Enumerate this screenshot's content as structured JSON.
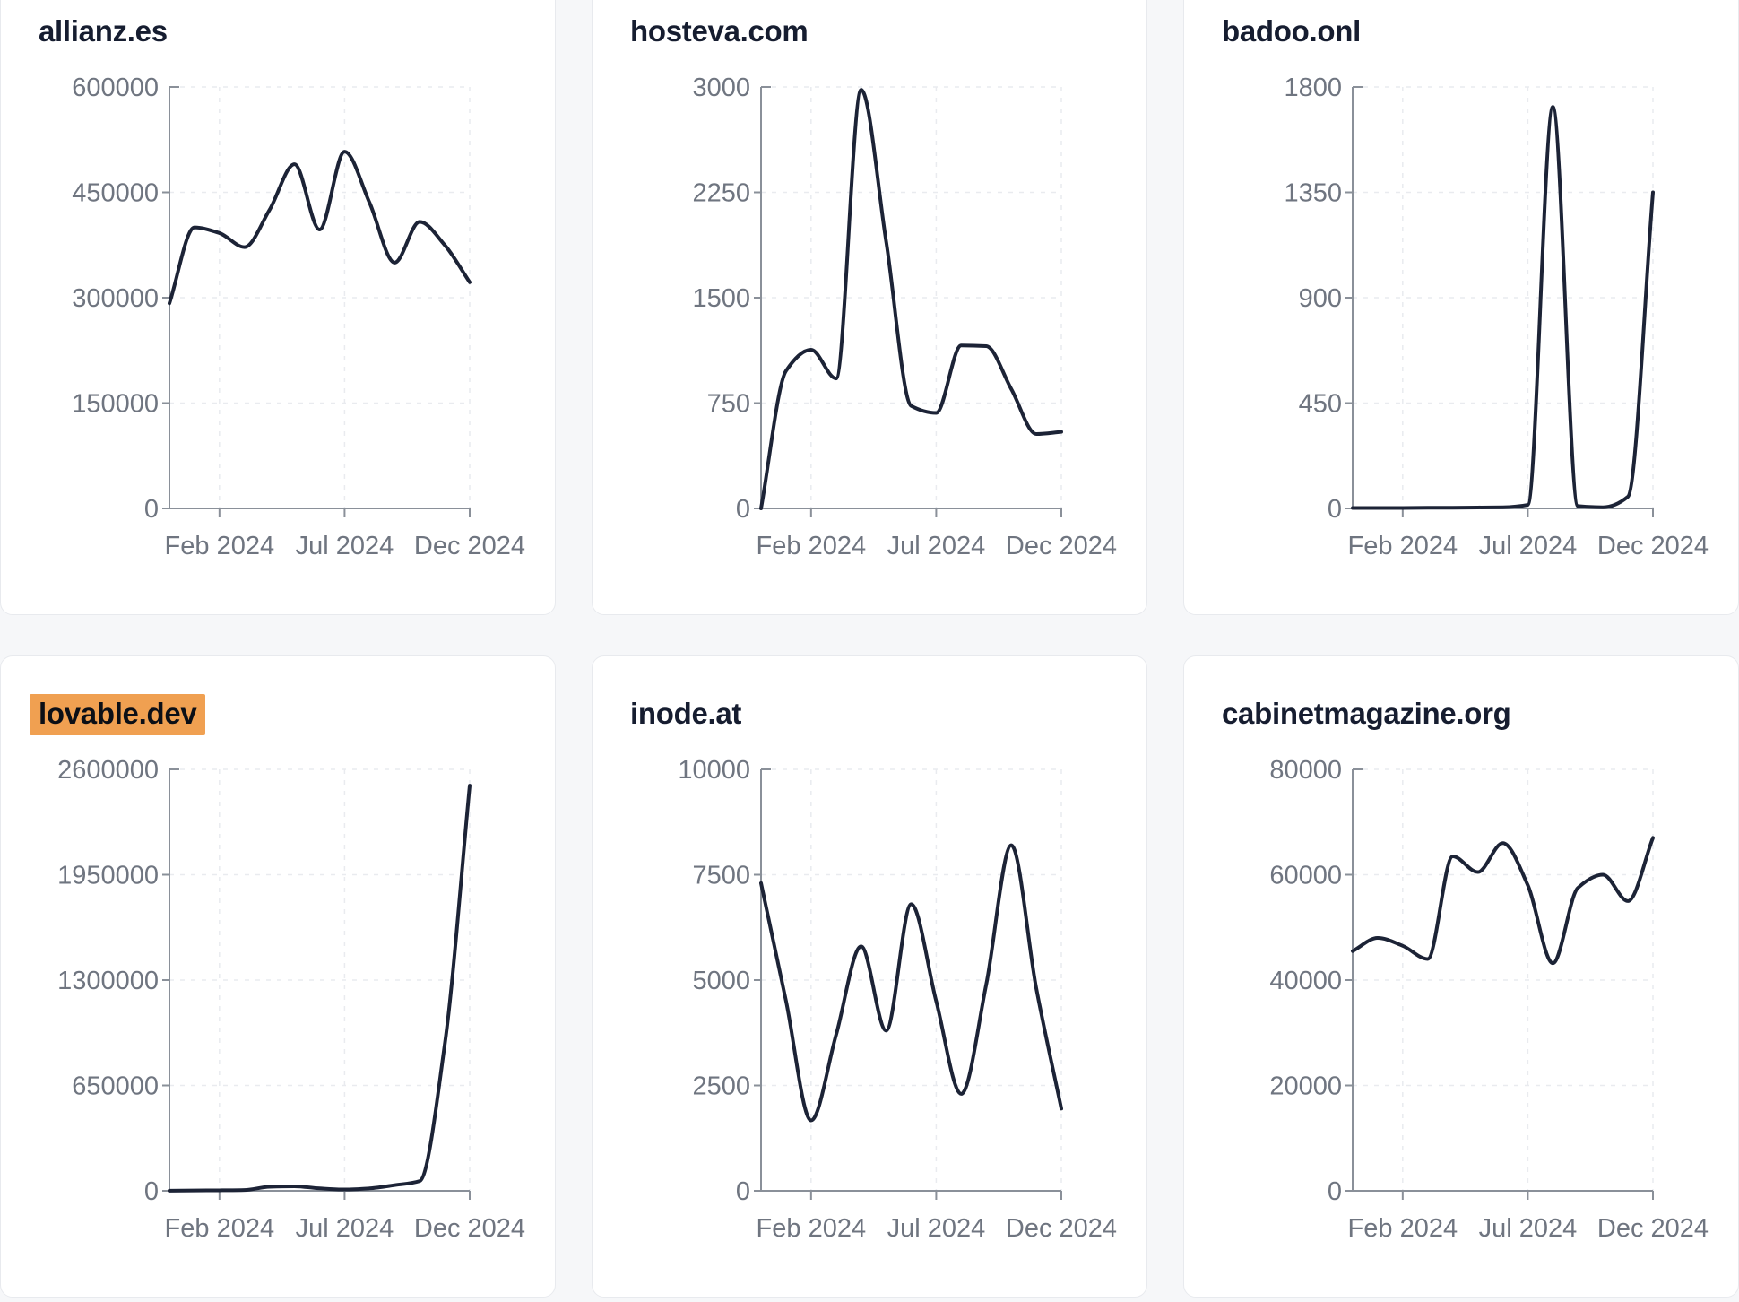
{
  "page": {
    "background_color": "#f6f7f9"
  },
  "styles": {
    "line_color": "#1c2336",
    "grid_color": "#e9ebef",
    "axis_color": "#8a9099",
    "tick_label_color": "#6f7580",
    "title_color": "#161d30",
    "highlight_color": "#f0a051",
    "card_background": "#ffffff",
    "card_border_color": "#e8eaee"
  },
  "chart_data": [
    {
      "type": "line",
      "title": "allianz.es",
      "highlighted": false,
      "x": [
        "Dec 2023",
        "Jan 2024",
        "Feb 2024",
        "Mar 2024",
        "Apr 2024",
        "May 2024",
        "Jun 2024",
        "Jul 2024",
        "Aug 2024",
        "Sep 2024",
        "Oct 2024",
        "Nov 2024",
        "Dec 2024"
      ],
      "values": [
        292000,
        400000,
        392000,
        372000,
        425000,
        490000,
        397000,
        508000,
        435000,
        350000,
        408000,
        375000,
        322000
      ],
      "ylim": [
        0,
        600000
      ],
      "y_ticks": [
        0,
        150000,
        300000,
        450000,
        600000
      ],
      "x_tick_labels": [
        "Feb 2024",
        "Jul 2024",
        "Dec 2024"
      ],
      "x_tick_indices": [
        2,
        7,
        12
      ],
      "grid": "dashed",
      "legend": "none"
    },
    {
      "type": "line",
      "title": "hosteva.com",
      "highlighted": false,
      "x": [
        "Dec 2023",
        "Jan 2024",
        "Feb 2024",
        "Mar 2024",
        "Apr 2024",
        "May 2024",
        "Jun 2024",
        "Jul 2024",
        "Aug 2024",
        "Sep 2024",
        "Oct 2024",
        "Nov 2024",
        "Dec 2024"
      ],
      "values": [
        0,
        980,
        1130,
        925,
        2980,
        1900,
        730,
        680,
        1160,
        1155,
        850,
        530,
        545
      ],
      "ylim": [
        0,
        3000
      ],
      "y_ticks": [
        0,
        750,
        1500,
        2250,
        3000
      ],
      "x_tick_labels": [
        "Feb 2024",
        "Jul 2024",
        "Dec 2024"
      ],
      "x_tick_indices": [
        2,
        7,
        12
      ],
      "grid": "dashed",
      "legend": "none"
    },
    {
      "type": "line",
      "title": "badoo.onl",
      "highlighted": false,
      "x": [
        "Dec 2023",
        "Jan 2024",
        "Feb 2024",
        "Mar 2024",
        "Apr 2024",
        "May 2024",
        "Jun 2024",
        "Jul 2024",
        "Aug 2024",
        "Sep 2024",
        "Oct 2024",
        "Nov 2024",
        "Dec 2024"
      ],
      "values": [
        2,
        2,
        2,
        3,
        3,
        4,
        5,
        15,
        1715,
        10,
        5,
        50,
        1350
      ],
      "ylim": [
        0,
        1800
      ],
      "y_ticks": [
        0,
        450,
        900,
        1350,
        1800
      ],
      "x_tick_labels": [
        "Feb 2024",
        "Jul 2024",
        "Dec 2024"
      ],
      "x_tick_indices": [
        2,
        7,
        12
      ],
      "grid": "dashed",
      "legend": "none"
    },
    {
      "type": "line",
      "title": "lovable.dev",
      "highlighted": true,
      "x": [
        "Dec 2023",
        "Jan 2024",
        "Feb 2024",
        "Mar 2024",
        "Apr 2024",
        "May 2024",
        "Jun 2024",
        "Jul 2024",
        "Aug 2024",
        "Sep 2024",
        "Oct 2024",
        "Nov 2024",
        "Dec 2024"
      ],
      "values": [
        1000,
        2000,
        3000,
        5000,
        25000,
        28000,
        15000,
        8000,
        15000,
        35000,
        60000,
        900000,
        2500000
      ],
      "ylim": [
        0,
        2600000
      ],
      "y_ticks": [
        0,
        650000,
        1300000,
        1950000,
        2600000
      ],
      "x_tick_labels": [
        "Feb 2024",
        "Jul 2024",
        "Dec 2024"
      ],
      "x_tick_indices": [
        2,
        7,
        12
      ],
      "grid": "dashed",
      "legend": "none"
    },
    {
      "type": "line",
      "title": "inode.at",
      "highlighted": false,
      "x": [
        "Dec 2023",
        "Jan 2024",
        "Feb 2024",
        "Mar 2024",
        "Apr 2024",
        "May 2024",
        "Jun 2024",
        "Jul 2024",
        "Aug 2024",
        "Sep 2024",
        "Oct 2024",
        "Nov 2024",
        "Dec 2024"
      ],
      "values": [
        7300,
        4500,
        1670,
        3700,
        5800,
        3800,
        6800,
        4500,
        2300,
        4900,
        8200,
        4800,
        1950
      ],
      "ylim": [
        0,
        10000
      ],
      "y_ticks": [
        0,
        2500,
        5000,
        7500,
        10000
      ],
      "x_tick_labels": [
        "Feb 2024",
        "Jul 2024",
        "Dec 2024"
      ],
      "x_tick_indices": [
        2,
        7,
        12
      ],
      "grid": "dashed",
      "legend": "none"
    },
    {
      "type": "line",
      "title": "cabinetmagazine.org",
      "highlighted": false,
      "x": [
        "Dec 2023",
        "Jan 2024",
        "Feb 2024",
        "Mar 2024",
        "Apr 2024",
        "May 2024",
        "Jun 2024",
        "Jul 2024",
        "Aug 2024",
        "Sep 2024",
        "Oct 2024",
        "Nov 2024",
        "Dec 2024"
      ],
      "values": [
        45500,
        48000,
        46500,
        44000,
        63500,
        60500,
        66000,
        58000,
        43200,
        57500,
        60000,
        55000,
        67000
      ],
      "ylim": [
        0,
        80000
      ],
      "y_ticks": [
        0,
        20000,
        40000,
        60000,
        80000
      ],
      "x_tick_labels": [
        "Feb 2024",
        "Jul 2024",
        "Dec 2024"
      ],
      "x_tick_indices": [
        2,
        7,
        12
      ],
      "grid": "dashed",
      "legend": "none"
    }
  ]
}
